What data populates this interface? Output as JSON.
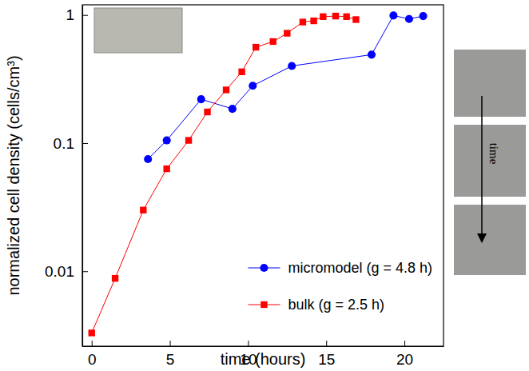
{
  "chart_data": {
    "type": "line",
    "x_label": "time (hours)",
    "y_label": "normalized cell density (cells/cm³)",
    "annotation": "time",
    "log": "y",
    "legend": "lower right",
    "xlim": [
      -0.6,
      22.5
    ],
    "xticks": [
      0,
      5,
      10,
      15,
      20
    ],
    "ylim": [
      0.0026,
      1.2
    ],
    "yticks": [
      0.01,
      0.1,
      1
    ],
    "series": [
      {
        "name": "micromodel (g = 4.8 h)",
        "color": "#0000ff",
        "marker": "circle",
        "line_style": "solid",
        "x": [
          3.6,
          4.8,
          7.0,
          9.0,
          10.3,
          12.8,
          17.9,
          19.3,
          20.3,
          21.2
        ],
        "values": [
          0.075,
          0.105,
          0.22,
          0.185,
          0.28,
          0.4,
          0.49,
          0.99,
          0.93,
          0.98
        ]
      },
      {
        "name": "bulk (g = 2.5 h)",
        "color": "#ff0000",
        "marker": "square",
        "line_style": "solid",
        "x": [
          0,
          1.5,
          3.3,
          4.8,
          6.2,
          7.4,
          8.6,
          9.6,
          10.5,
          11.6,
          12.5,
          13.5,
          14.2,
          14.8,
          15.6,
          16.3,
          16.9
        ],
        "values": [
          0.0033,
          0.0088,
          0.03,
          0.063,
          0.105,
          0.175,
          0.26,
          0.36,
          0.56,
          0.62,
          0.72,
          0.88,
          0.9,
          0.97,
          0.98,
          0.97,
          0.92
        ]
      }
    ]
  }
}
